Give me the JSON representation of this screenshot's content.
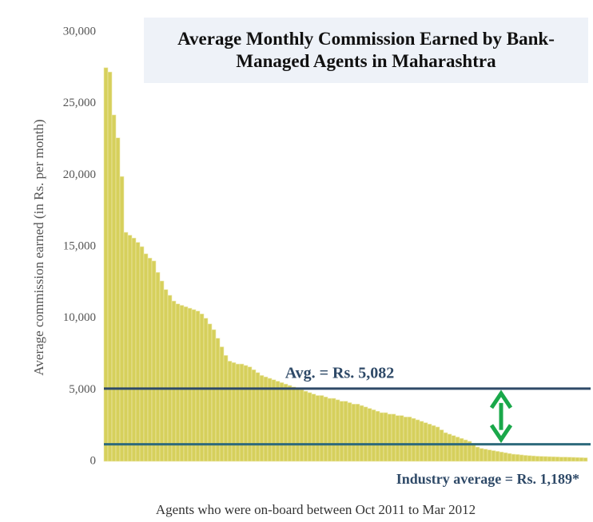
{
  "chart_data": {
    "type": "bar",
    "title": "Average Monthly Commission Earned by Bank-Managed Agents in Maharashtra",
    "y_label": "Average commission earned (in Rs. per month)",
    "x_label": "Agents who were on-board between Oct 2011 to Mar 2012",
    "color": "#d6d05c",
    "ylim": [
      0,
      30000
    ],
    "yticks": [
      0,
      {
        "value": 5000,
        "label": "5,000"
      },
      {
        "value": 10000,
        "label": "10,000"
      },
      {
        "value": 15000,
        "label": "15,000"
      },
      {
        "value": 20000,
        "label": "20,000"
      },
      {
        "value": 25000,
        "label": "25,000"
      },
      {
        "value": 30000,
        "label": "30,000"
      }
    ],
    "reference_lines": [
      {
        "value": 5082,
        "label": "Avg. = Rs. 5,082",
        "color": "#2f4a68"
      },
      {
        "value": 1189,
        "label": "Industry average = Rs. 1,189*",
        "color": "#2e6a7c"
      }
    ],
    "values": [
      27500,
      27200,
      24200,
      22600,
      19900,
      16000,
      15800,
      15600,
      15300,
      15000,
      14500,
      14200,
      14000,
      13200,
      12600,
      12000,
      11600,
      11200,
      11000,
      10900,
      10800,
      10700,
      10600,
      10500,
      10300,
      10000,
      9600,
      9200,
      8600,
      8000,
      7400,
      7000,
      6900,
      6800,
      6800,
      6700,
      6600,
      6400,
      6200,
      6000,
      5900,
      5800,
      5700,
      5600,
      5500,
      5400,
      5300,
      5200,
      5100,
      5000,
      4900,
      4800,
      4700,
      4600,
      4600,
      4500,
      4400,
      4400,
      4300,
      4200,
      4200,
      4100,
      4000,
      4000,
      3900,
      3800,
      3700,
      3600,
      3500,
      3400,
      3400,
      3300,
      3300,
      3200,
      3200,
      3100,
      3100,
      3000,
      2900,
      2800,
      2700,
      2600,
      2500,
      2400,
      2200,
      2000,
      1900,
      1800,
      1700,
      1600,
      1500,
      1400,
      1200,
      1000,
      900,
      850,
      800,
      750,
      700,
      650,
      600,
      550,
      500,
      480,
      450,
      420,
      400,
      380,
      360,
      350,
      340,
      330,
      320,
      310,
      300,
      300,
      290,
      280,
      270,
      260,
      250
    ]
  }
}
